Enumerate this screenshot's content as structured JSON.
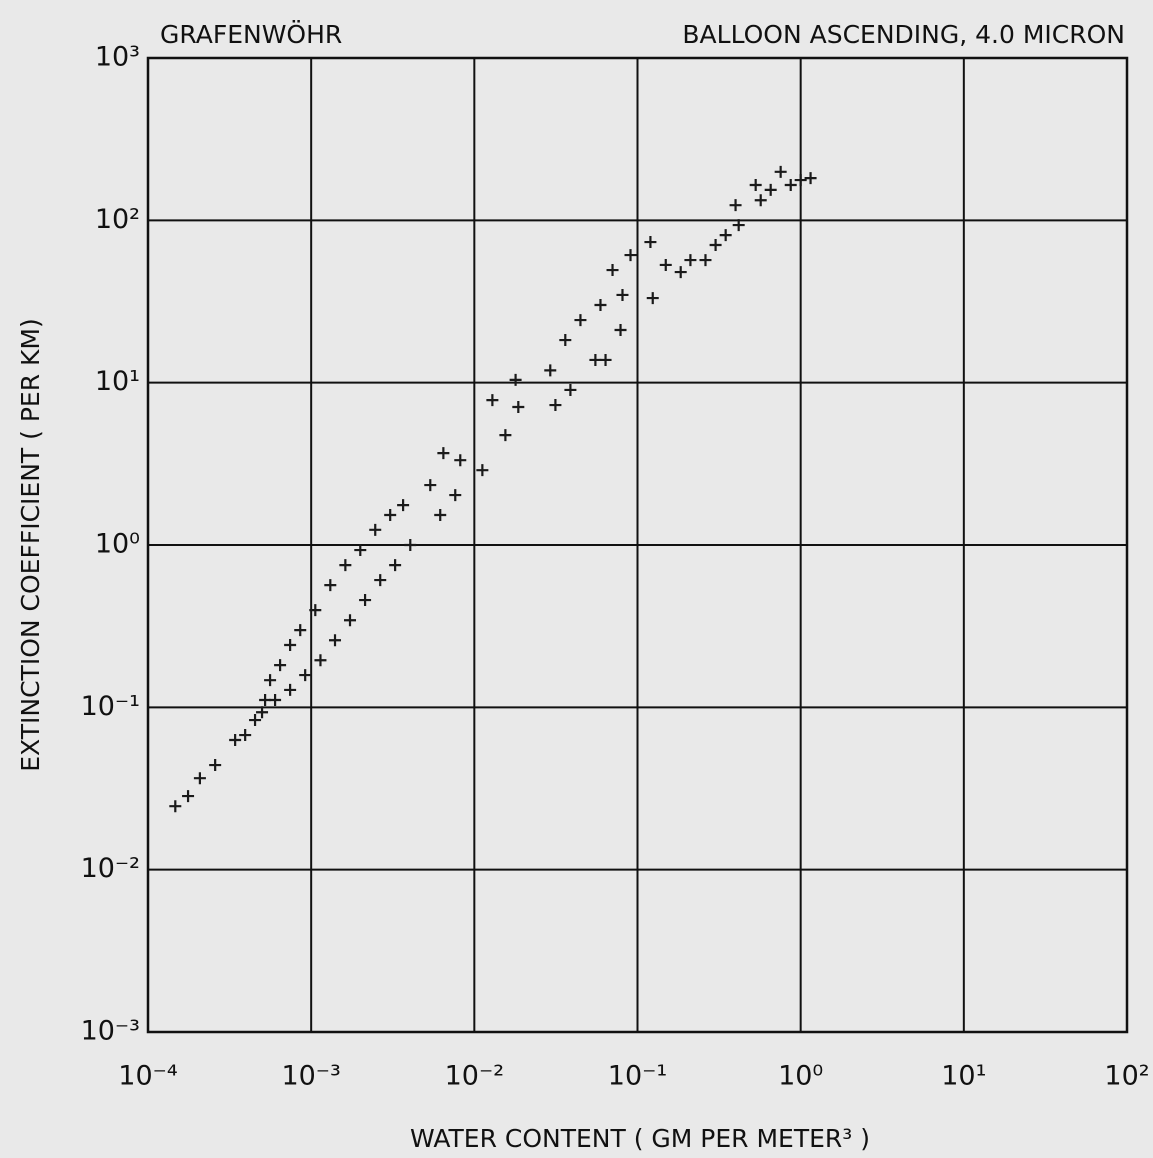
{
  "chart_data": {
    "type": "scatter",
    "title_left": "GRAFENWÖHR",
    "title_right": "BALLOON ASCENDING, 4.0 MICRON",
    "x_label": "WATER CONTENT ( GM PER METER³ )",
    "y_label": "EXTINCTION COEFFICIENT ( PER KM)",
    "x_log": true,
    "y_log": true,
    "grid": true,
    "marker": "plus",
    "color": "#1a1a1a",
    "xlim": [
      0.0001,
      100
    ],
    "ylim": [
      0.001,
      1000
    ],
    "xticks": [
      {
        "value": 0.0001,
        "label": "10⁻⁴"
      },
      {
        "value": 0.001,
        "label": "10⁻³"
      },
      {
        "value": 0.01,
        "label": "10⁻²"
      },
      {
        "value": 0.1,
        "label": "10⁻¹"
      },
      {
        "value": 1,
        "label": "10⁰"
      },
      {
        "value": 10,
        "label": "10¹"
      },
      {
        "value": 100,
        "label": "10²"
      }
    ],
    "yticks": [
      {
        "value": 0.001,
        "label": "10⁻³"
      },
      {
        "value": 0.01,
        "label": "10⁻²"
      },
      {
        "value": 0.1,
        "label": "10⁻¹"
      },
      {
        "value": 1,
        "label": "10⁰"
      },
      {
        "value": 10,
        "label": "10¹"
      },
      {
        "value": 100,
        "label": "10²"
      },
      {
        "value": 1000,
        "label": "10³"
      }
    ],
    "x": [
      0.000147,
      0.000176,
      0.000208,
      0.000258,
      0.000342,
      0.000394,
      0.000453,
      0.000522,
      0.00056,
      0.000645,
      0.000743,
      0.0005,
      0.000601,
      0.000743,
      0.000919,
      0.00114,
      0.0014,
      0.00173,
      0.00214,
      0.00265,
      0.00327,
      0.00405,
      0.000857,
      0.00106,
      0.00131,
      0.00162,
      0.002,
      0.00247,
      0.00305,
      0.00366,
      0.00537,
      0.00618,
      0.00764,
      0.00646,
      0.0082,
      0.0112,
      0.0155,
      0.0129,
      0.0179,
      0.0186,
      0.0292,
      0.0314,
      0.0388,
      0.0361,
      0.0447,
      0.0593,
      0.0552,
      0.0637,
      0.0787,
      0.0703,
      0.0906,
      0.12,
      0.0809,
      0.124,
      0.149,
      0.184,
      0.211,
      0.261,
      0.301,
      0.347,
      0.417,
      0.399,
      0.569,
      0.655,
      0.754,
      0.869,
      1.0,
      1.15,
      0.53
    ],
    "y": [
      0.0246,
      0.0284,
      0.0366,
      0.0441,
      0.0629,
      0.0675,
      0.0835,
      0.111,
      0.147,
      0.182,
      0.242,
      0.0933,
      0.111,
      0.128,
      0.158,
      0.195,
      0.259,
      0.344,
      0.458,
      0.608,
      0.752,
      1.0,
      0.299,
      0.397,
      0.566,
      0.752,
      0.931,
      1.24,
      1.53,
      1.76,
      2.34,
      1.53,
      2.03,
      3.68,
      3.33,
      2.89,
      4.75,
      7.81,
      10.4,
      7.08,
      11.9,
      7.28,
      9.02,
      18.3,
      24.3,
      30.1,
      13.8,
      13.8,
      21.1,
      49.4,
      61.1,
      73.5,
      34.7,
      33.2,
      53.1,
      48.0,
      56.9,
      56.9,
      70.5,
      81.1,
      93.5,
      124,
      133,
      154,
      199,
      165,
      177,
      182,
      165
    ]
  }
}
